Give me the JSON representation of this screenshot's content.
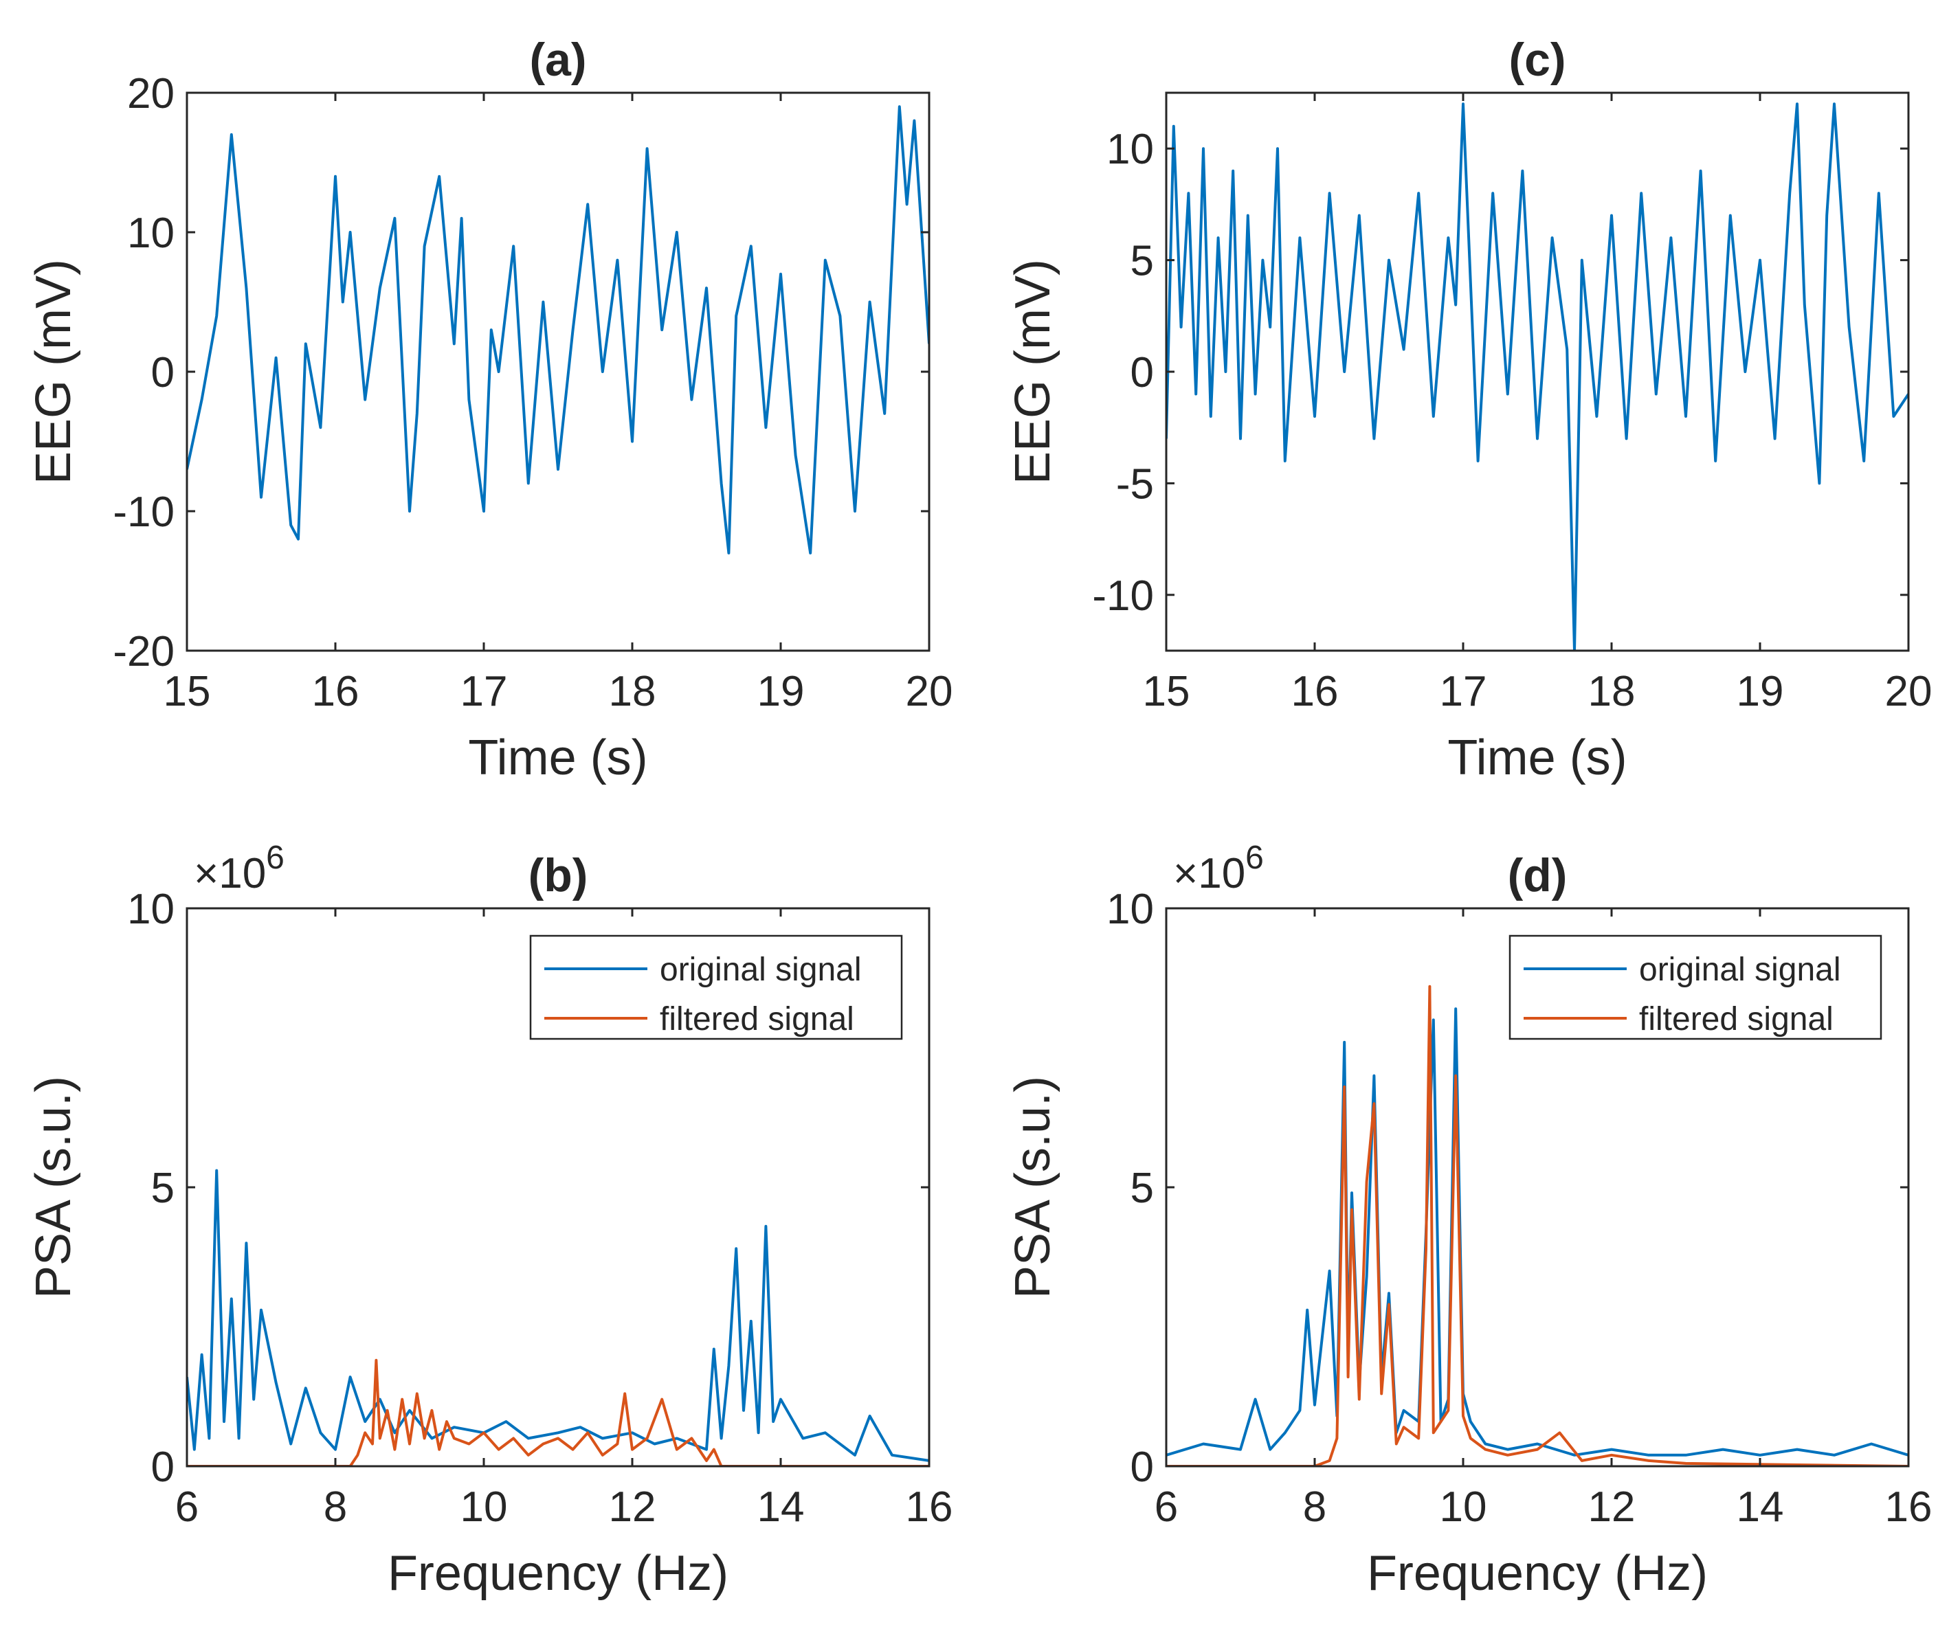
{
  "chart_data": [
    {
      "id": "a",
      "type": "line",
      "title": "(a)",
      "xlabel": "Time (s)",
      "ylabel": "EEG (mV)",
      "xlim": [
        15,
        20
      ],
      "ylim": [
        -20,
        20
      ],
      "xticks": [
        15,
        16,
        17,
        18,
        19,
        20
      ],
      "yticks": [
        -20,
        -10,
        0,
        10,
        20
      ],
      "xtick_labels": [
        "15",
        "16",
        "17",
        "18",
        "19",
        "20"
      ],
      "ytick_labels": [
        "-20",
        "-10",
        "0",
        "10",
        "20"
      ],
      "series": [
        {
          "name": "EEG",
          "color": "#0072BD",
          "x": [
            15.0,
            15.1,
            15.2,
            15.3,
            15.4,
            15.5,
            15.6,
            15.7,
            15.75,
            15.8,
            15.9,
            16.0,
            16.05,
            16.1,
            16.2,
            16.3,
            16.4,
            16.5,
            16.55,
            16.6,
            16.7,
            16.8,
            16.85,
            16.9,
            17.0,
            17.05,
            17.1,
            17.2,
            17.3,
            17.4,
            17.5,
            17.6,
            17.7,
            17.8,
            17.9,
            18.0,
            18.1,
            18.2,
            18.3,
            18.4,
            18.5,
            18.6,
            18.65,
            18.7,
            18.8,
            18.9,
            19.0,
            19.1,
            19.2,
            19.3,
            19.4,
            19.5,
            19.6,
            19.7,
            19.8,
            19.85,
            19.9,
            20.0
          ],
          "y": [
            -7,
            -2,
            4,
            17,
            6,
            -9,
            1,
            -11,
            -12,
            2,
            -4,
            14,
            5,
            10,
            -2,
            6,
            11,
            -10,
            -3,
            9,
            14,
            2,
            11,
            -2,
            -10,
            3,
            0,
            9,
            -8,
            5,
            -7,
            3,
            12,
            0,
            8,
            -5,
            16,
            3,
            10,
            -2,
            6,
            -8,
            -13,
            4,
            9,
            -4,
            7,
            -6,
            -13,
            8,
            4,
            -10,
            5,
            -3,
            19,
            12,
            18,
            2
          ]
        }
      ]
    },
    {
      "id": "b",
      "type": "line",
      "title": "(b)",
      "xlabel": "Frequency (Hz)",
      "ylabel": "PSA (s.u.)",
      "multiplier": "×10",
      "multiplier_exp": "6",
      "xlim": [
        6,
        16
      ],
      "ylim": [
        0,
        10
      ],
      "xticks": [
        6,
        8,
        10,
        12,
        14,
        16
      ],
      "yticks": [
        0,
        5,
        10
      ],
      "xtick_labels": [
        "6",
        "8",
        "10",
        "12",
        "14",
        "16"
      ],
      "ytick_labels": [
        "0",
        "5",
        "10"
      ],
      "legend_position": "top-right",
      "series": [
        {
          "name": "original signal",
          "color": "#0072BD",
          "x": [
            6.0,
            6.1,
            6.2,
            6.3,
            6.4,
            6.5,
            6.6,
            6.7,
            6.8,
            6.9,
            7.0,
            7.2,
            7.4,
            7.6,
            7.8,
            8.0,
            8.2,
            8.4,
            8.6,
            8.8,
            9.0,
            9.3,
            9.6,
            10.0,
            10.3,
            10.6,
            11.0,
            11.3,
            11.6,
            12.0,
            12.3,
            12.6,
            13.0,
            13.1,
            13.2,
            13.3,
            13.4,
            13.5,
            13.6,
            13.7,
            13.8,
            13.9,
            14.0,
            14.3,
            14.6,
            15.0,
            15.2,
            15.5,
            16.0
          ],
          "y": [
            1.6,
            0.3,
            2.0,
            0.5,
            5.3,
            0.8,
            3.0,
            0.5,
            4.0,
            1.2,
            2.8,
            1.5,
            0.4,
            1.4,
            0.6,
            0.3,
            1.6,
            0.8,
            1.2,
            0.6,
            1.0,
            0.5,
            0.7,
            0.6,
            0.8,
            0.5,
            0.6,
            0.7,
            0.5,
            0.6,
            0.4,
            0.5,
            0.3,
            2.1,
            0.5,
            1.8,
            3.9,
            1.0,
            2.6,
            0.6,
            4.3,
            0.8,
            1.2,
            0.5,
            0.6,
            0.2,
            0.9,
            0.2,
            0.1
          ]
        },
        {
          "name": "filtered signal",
          "color": "#D95319",
          "x": [
            6.0,
            8.0,
            8.2,
            8.3,
            8.4,
            8.5,
            8.55,
            8.6,
            8.7,
            8.8,
            8.9,
            9.0,
            9.1,
            9.2,
            9.3,
            9.4,
            9.5,
            9.6,
            9.8,
            10.0,
            10.2,
            10.4,
            10.6,
            10.8,
            11.0,
            11.2,
            11.4,
            11.6,
            11.8,
            11.9,
            12.0,
            12.2,
            12.4,
            12.6,
            12.8,
            13.0,
            13.1,
            13.2,
            16.0
          ],
          "y": [
            0,
            0,
            0,
            0.2,
            0.6,
            0.4,
            1.9,
            0.5,
            1.0,
            0.3,
            1.2,
            0.4,
            1.3,
            0.5,
            1.0,
            0.3,
            0.8,
            0.5,
            0.4,
            0.6,
            0.3,
            0.5,
            0.2,
            0.4,
            0.5,
            0.3,
            0.6,
            0.2,
            0.4,
            1.3,
            0.3,
            0.5,
            1.2,
            0.3,
            0.5,
            0.1,
            0.3,
            0,
            0
          ]
        }
      ]
    },
    {
      "id": "c",
      "type": "line",
      "title": "(c)",
      "xlabel": "Time (s)",
      "ylabel": "EEG (mV)",
      "xlim": [
        15,
        20
      ],
      "ylim": [
        -12.5,
        12.5
      ],
      "xticks": [
        15,
        16,
        17,
        18,
        19,
        20
      ],
      "yticks": [
        -10,
        -5,
        0,
        5,
        10
      ],
      "xtick_labels": [
        "15",
        "16",
        "17",
        "18",
        "19",
        "20"
      ],
      "ytick_labels": [
        "-10",
        "-5",
        "0",
        "5",
        "10"
      ],
      "series": [
        {
          "name": "EEG",
          "color": "#0072BD",
          "x": [
            15.0,
            15.05,
            15.1,
            15.15,
            15.2,
            15.25,
            15.3,
            15.35,
            15.4,
            15.45,
            15.5,
            15.55,
            15.6,
            15.65,
            15.7,
            15.75,
            15.8,
            15.9,
            16.0,
            16.1,
            16.2,
            16.3,
            16.4,
            16.5,
            16.6,
            16.7,
            16.8,
            16.9,
            16.95,
            17.0,
            17.1,
            17.2,
            17.3,
            17.4,
            17.5,
            17.6,
            17.7,
            17.75,
            17.8,
            17.9,
            18.0,
            18.1,
            18.2,
            18.3,
            18.4,
            18.5,
            18.6,
            18.7,
            18.8,
            18.9,
            19.0,
            19.1,
            19.2,
            19.25,
            19.3,
            19.4,
            19.45,
            19.5,
            19.6,
            19.7,
            19.8,
            19.9,
            20.0
          ],
          "y": [
            -3,
            11,
            2,
            8,
            -1,
            10,
            -2,
            6,
            0,
            9,
            -3,
            7,
            -1,
            5,
            2,
            10,
            -4,
            6,
            -2,
            8,
            0,
            7,
            -3,
            5,
            1,
            8,
            -2,
            6,
            3,
            12,
            -4,
            8,
            -1,
            9,
            -3,
            6,
            1,
            -12.5,
            5,
            -2,
            7,
            -3,
            8,
            -1,
            6,
            -2,
            9,
            -4,
            7,
            0,
            5,
            -3,
            8,
            12,
            3,
            -5,
            7,
            12,
            2,
            -4,
            8,
            -2,
            -1
          ]
        }
      ]
    },
    {
      "id": "d",
      "type": "line",
      "title": "(d)",
      "xlabel": "Frequency (Hz)",
      "ylabel": "PSA (s.u.)",
      "multiplier": "×10",
      "multiplier_exp": "6",
      "xlim": [
        6,
        16
      ],
      "ylim": [
        0,
        10
      ],
      "xticks": [
        6,
        8,
        10,
        12,
        14,
        16
      ],
      "yticks": [
        0,
        5,
        10
      ],
      "xtick_labels": [
        "6",
        "8",
        "10",
        "12",
        "14",
        "16"
      ],
      "ytick_labels": [
        "0",
        "5",
        "10"
      ],
      "legend_position": "top-right",
      "series": [
        {
          "name": "original signal",
          "color": "#0072BD",
          "x": [
            6.0,
            6.5,
            7.0,
            7.2,
            7.4,
            7.6,
            7.8,
            7.9,
            8.0,
            8.1,
            8.2,
            8.3,
            8.4,
            8.45,
            8.5,
            8.6,
            8.7,
            8.8,
            8.9,
            9.0,
            9.1,
            9.2,
            9.4,
            9.5,
            9.6,
            9.7,
            9.8,
            9.9,
            10.0,
            10.1,
            10.3,
            10.6,
            11.0,
            11.5,
            12.0,
            12.5,
            13.0,
            13.5,
            14.0,
            14.5,
            15.0,
            15.5,
            16.0
          ],
          "y": [
            0.2,
            0.4,
            0.3,
            1.2,
            0.3,
            0.6,
            1.0,
            2.8,
            1.1,
            2.3,
            3.5,
            0.9,
            7.6,
            2.0,
            4.9,
            1.5,
            3.4,
            7.0,
            1.6,
            3.1,
            0.6,
            1.0,
            0.8,
            4.2,
            8.0,
            0.8,
            1.2,
            8.2,
            1.3,
            0.8,
            0.4,
            0.3,
            0.4,
            0.2,
            0.3,
            0.2,
            0.2,
            0.3,
            0.2,
            0.3,
            0.2,
            0.4,
            0.2
          ]
        },
        {
          "name": "filtered signal",
          "color": "#D95319",
          "x": [
            6.0,
            8.0,
            8.2,
            8.3,
            8.4,
            8.45,
            8.5,
            8.6,
            8.7,
            8.8,
            8.9,
            9.0,
            9.1,
            9.2,
            9.4,
            9.5,
            9.55,
            9.6,
            9.7,
            9.8,
            9.9,
            10.0,
            10.1,
            10.3,
            10.6,
            11.0,
            11.3,
            11.6,
            12.0,
            12.5,
            13.0,
            16.0
          ],
          "y": [
            0,
            0,
            0.1,
            0.5,
            6.8,
            1.6,
            4.6,
            1.2,
            5.1,
            6.5,
            1.3,
            2.9,
            0.4,
            0.7,
            0.5,
            3.9,
            8.6,
            0.6,
            0.8,
            1.0,
            7.0,
            0.9,
            0.5,
            0.3,
            0.2,
            0.3,
            0.6,
            0.1,
            0.2,
            0.1,
            0.05,
            0
          ]
        }
      ]
    }
  ]
}
